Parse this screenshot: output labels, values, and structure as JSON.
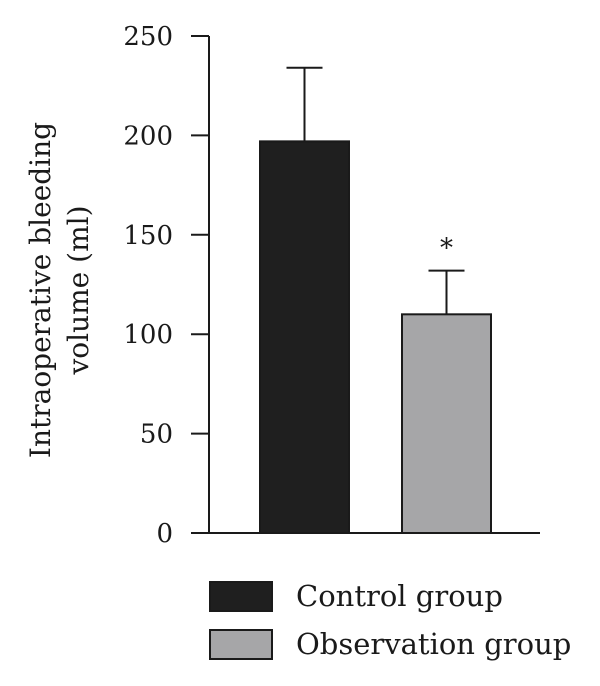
{
  "chart_data": {
    "type": "bar",
    "categories": [
      "Control group",
      "Observation group"
    ],
    "values": [
      197,
      110
    ],
    "error_bars": [
      37,
      22
    ],
    "ylabel": [
      "Intraoperative bleeding",
      "volume (ml)"
    ],
    "ylim": [
      0,
      250
    ],
    "yticks": [
      0,
      50,
      100,
      150,
      200,
      250
    ],
    "grid": false,
    "legend": {
      "placement": "bottom",
      "entries": [
        "Control group",
        "Observation group"
      ]
    },
    "annotations": [
      {
        "category": "Observation group",
        "text": "*"
      }
    ],
    "colors": [
      "#1f1f1f",
      "#a6a6a8"
    ]
  }
}
